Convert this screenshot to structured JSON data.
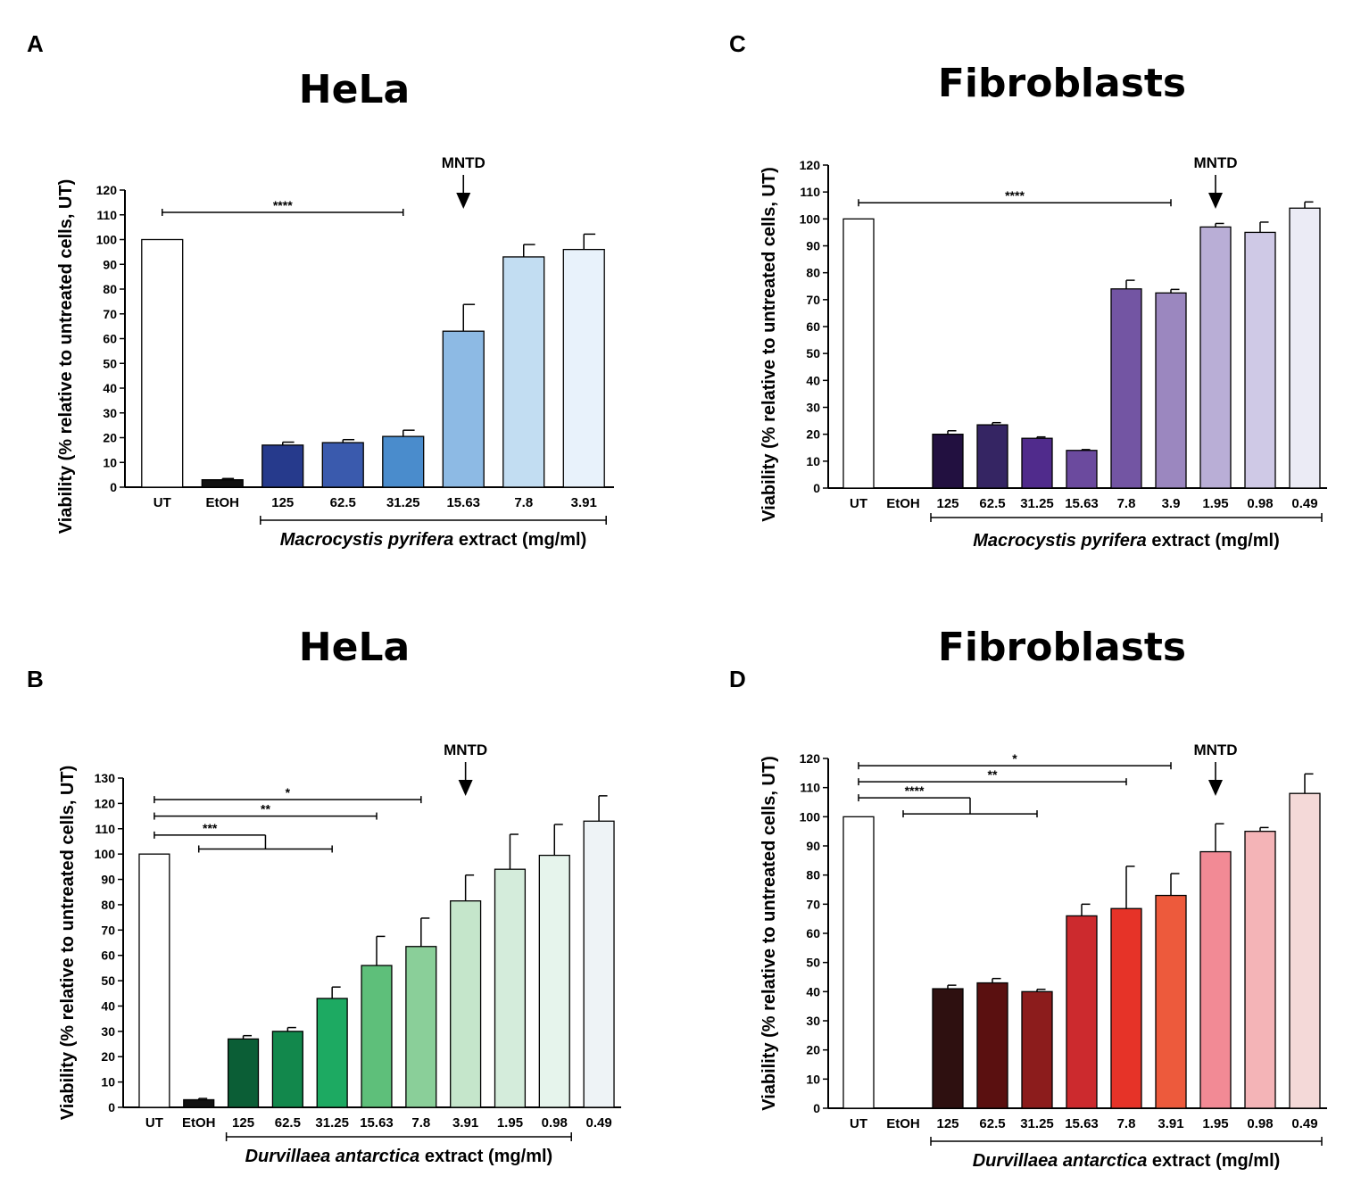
{
  "chart_data": [
    {
      "type": "bar",
      "panel": "A",
      "title": "HeLa",
      "ylabel": "Viability (% relative to untreated cells, UT)",
      "xlabel_italic": "Macrocystis pyrifera",
      "xlabel_rest": " extract (mg/ml)",
      "ylim": [
        0,
        120
      ],
      "yticks": [
        0,
        10,
        20,
        30,
        40,
        50,
        60,
        70,
        80,
        90,
        100,
        110,
        120
      ],
      "categories": [
        "UT",
        "EtOH",
        "125",
        "62.5",
        "31.25",
        "15.63",
        "7.8",
        "3.91"
      ],
      "values": [
        100,
        3,
        17,
        18,
        20.5,
        63,
        93,
        96
      ],
      "errors": [
        0,
        0.5,
        1.2,
        1.2,
        2.5,
        10.8,
        5,
        6.2
      ],
      "colors": [
        "#ffffff",
        "#111111",
        "#263a8c",
        "#3a5aad",
        "#4a8ccc",
        "#8dbae4",
        "#c2ddf2",
        "#e8f2fb"
      ],
      "mntd": {
        "label": "MNTD",
        "category": "15.63"
      },
      "significance": [
        {
          "label": "****",
          "from": "UT",
          "to": "31.25",
          "y": 111
        }
      ],
      "bracket": {
        "from": "125",
        "to": "3.91"
      }
    },
    {
      "type": "bar",
      "panel": "B",
      "title": "HeLa",
      "ylabel": "Viability (% relative to untreated cells, UT)",
      "xlabel_italic": "Durvillaea antarctica",
      "xlabel_rest": " extract (mg/ml)",
      "ylim": [
        0,
        130
      ],
      "yticks": [
        0,
        10,
        20,
        30,
        40,
        50,
        60,
        70,
        80,
        90,
        100,
        110,
        120,
        130
      ],
      "categories": [
        "UT",
        "EtOH",
        "125",
        "62.5",
        "31.25",
        "15.63",
        "7.8",
        "3.91",
        "1.95",
        "0.98",
        "0.49"
      ],
      "values": [
        100,
        3,
        27,
        30,
        43,
        56,
        63.5,
        81.5,
        94,
        99.5,
        113
      ],
      "errors": [
        0,
        0.5,
        1.3,
        1.5,
        4.5,
        11.5,
        11.2,
        10.2,
        13.8,
        12.2,
        10
      ],
      "colors": [
        "#ffffff",
        "#111111",
        "#0b5e36",
        "#12884c",
        "#1daa62",
        "#5ebf7a",
        "#8acf99",
        "#c5e6cb",
        "#d4ecdb",
        "#e6f4ec",
        "#eef3f6"
      ],
      "mntd": {
        "label": "MNTD",
        "category": "3.91"
      },
      "significance": [
        {
          "label": "*",
          "from": "UT",
          "to": "7.8",
          "y": 121.5
        },
        {
          "label": "**",
          "from": "UT",
          "to": "15.63",
          "y": 115
        },
        {
          "label": "***",
          "from": "UT",
          "combo": true,
          "pivot": 107.5,
          "comboFrom": "EtOH",
          "comboTo": "31.25",
          "comboY": 102
        }
      ],
      "bracket": {
        "from": "125",
        "to": "0.98"
      }
    },
    {
      "type": "bar",
      "panel": "C",
      "title": "Fibroblasts",
      "ylabel": "Viability (% relative to untreated cells, UT)",
      "xlabel_italic": "Macrocystis pyrifera",
      "xlabel_rest": " extract (mg/ml)",
      "ylim": [
        0,
        120
      ],
      "yticks": [
        0,
        10,
        20,
        30,
        40,
        50,
        60,
        70,
        80,
        90,
        100,
        110,
        120
      ],
      "categories": [
        "UT",
        "EtOH",
        "125",
        "62.5",
        "31.25",
        "15.63",
        "7.8",
        "3.9",
        "1.95",
        "0.98",
        "0.49"
      ],
      "values": [
        100,
        0,
        20,
        23.5,
        18.5,
        14,
        74,
        72.5,
        97,
        95,
        104
      ],
      "errors": [
        0,
        0,
        1.3,
        0.8,
        0.5,
        0.3,
        3.2,
        1.3,
        1.3,
        3.8,
        2.3
      ],
      "colors": [
        "#ffffff",
        "#ffffff",
        "#221040",
        "#352563",
        "#502b8c",
        "#6b4a9e",
        "#7355a3",
        "#9b87bf",
        "#b9aed6",
        "#cfc9e6",
        "#ebebf5"
      ],
      "mntd": {
        "label": "MNTD",
        "category": "1.95"
      },
      "significance": [
        {
          "label": "****",
          "from": "UT",
          "to": "3.9",
          "y": 106
        }
      ],
      "bracket": {
        "from": "125",
        "to": "0.49"
      }
    },
    {
      "type": "bar",
      "panel": "D",
      "title": "Fibroblasts",
      "ylabel": "Viability (% relative to untreated cells, UT)",
      "xlabel_italic": "Durvillaea antarctica",
      "xlabel_rest": " extract (mg/ml)",
      "ylim": [
        0,
        120
      ],
      "yticks": [
        0,
        10,
        20,
        30,
        40,
        50,
        60,
        70,
        80,
        90,
        100,
        110,
        120
      ],
      "categories": [
        "UT",
        "EtOH",
        "125",
        "62.5",
        "31.25",
        "15.63",
        "7.8",
        "3.91",
        "1.95",
        "0.98",
        "0.49"
      ],
      "values": [
        100,
        0,
        41,
        43,
        40,
        66,
        68.5,
        73,
        88,
        95,
        108
      ],
      "errors": [
        0,
        0,
        1.2,
        1.5,
        0.8,
        4,
        14.5,
        7.5,
        9.6,
        1.3,
        6.7
      ],
      "colors": [
        "#ffffff",
        "#ffffff",
        "#2e1010",
        "#5a1010",
        "#8c1c1c",
        "#cc2a2e",
        "#e63328",
        "#ed5a3c",
        "#f28a95",
        "#f4b4b7",
        "#f4d9d8"
      ],
      "mntd": {
        "label": "MNTD",
        "category": "1.95"
      },
      "significance": [
        {
          "label": "*",
          "from": "UT",
          "to": "3.91",
          "y": 117.5
        },
        {
          "label": "**",
          "from": "UT",
          "to": "7.8",
          "y": 112
        },
        {
          "label": "****",
          "from": "UT",
          "combo": true,
          "pivot": 106.5,
          "comboFrom": "EtOH",
          "comboTo": "31.25",
          "comboY": 101
        }
      ],
      "bracket": {
        "from": "125",
        "to": "0.49"
      }
    }
  ]
}
